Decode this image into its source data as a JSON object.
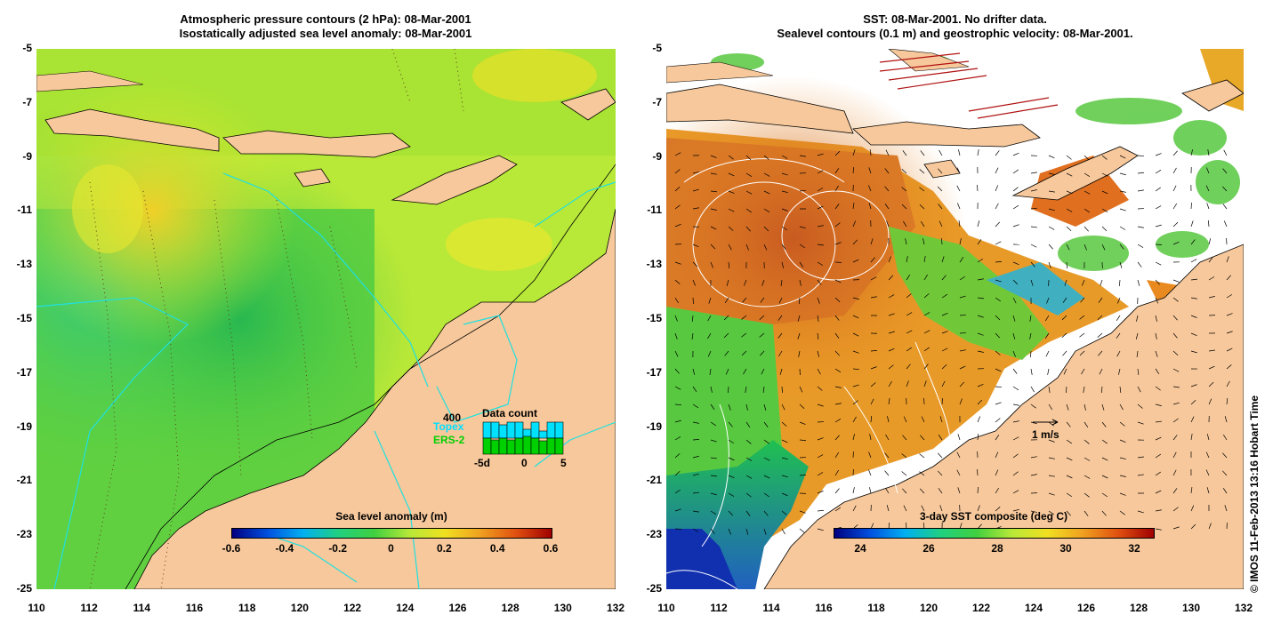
{
  "left_panel": {
    "title_line1": "Atmospheric pressure contours (2 hPa): 08-Mar-2001",
    "title_line2": "Isostatically adjusted sea level anomaly: 08-Mar-2001",
    "colorbar_title": "Sea level anomaly (m)",
    "colorbar_ticks": [
      "-0.6",
      "-0.4",
      "-0.2",
      "0",
      "0.2",
      "0.4",
      "0.6"
    ],
    "data_count": {
      "title": "Data count",
      "max_label": "400",
      "topex_label": "Topex",
      "ers_label": "ERS-2",
      "axis_ticks": [
        "-5d",
        "0",
        "5"
      ],
      "topex_color": "#00e0ff",
      "ers_color": "#00d000"
    }
  },
  "right_panel": {
    "title_line1": "SST: 08-Mar-2001. No drifter data.",
    "title_line2": "Sealevel contours (0.1 m) and geostrophic velocity: 08-Mar-2001.",
    "colorbar_title": "3-day SST composite (deg C)",
    "colorbar_ticks": [
      "24",
      "26",
      "28",
      "30",
      "32"
    ],
    "velocity_scale_label": "1 m/s"
  },
  "axes": {
    "y_ticks": [
      "-5",
      "-7",
      "-9",
      "-11",
      "-13",
      "-15",
      "-17",
      "-19",
      "-21",
      "-23",
      "-25"
    ],
    "x_ticks": [
      "110",
      "112",
      "114",
      "116",
      "118",
      "120",
      "122",
      "124",
      "126",
      "128",
      "130",
      "132"
    ]
  },
  "credit": "© IMOS 11-Feb-2013 13:16 Hobart Time",
  "colors": {
    "land": "#f7c89b",
    "ocean_mid": "#7ee030",
    "ocean_yellow": "#d8f030",
    "ocean_dark": "#30c050",
    "sst_orange": "#e88a20",
    "sst_deep": "#c05a18"
  }
}
